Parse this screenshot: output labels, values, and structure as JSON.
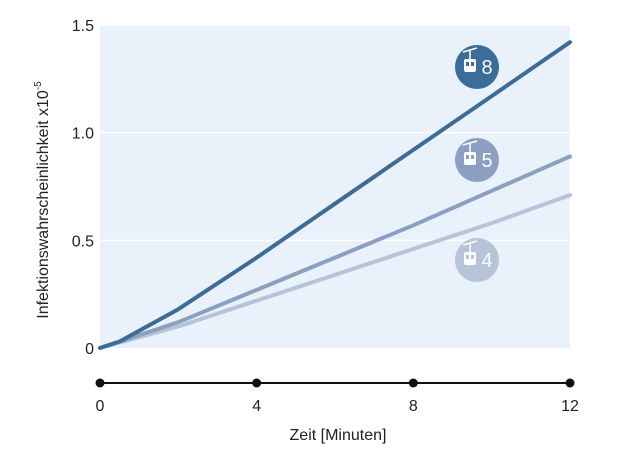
{
  "chart_data": {
    "type": "line",
    "xlabel": "Zeit [Minuten]",
    "ylabel_main": "Infektionswahrscheinlichkeit x10",
    "ylabel_exp": "-5",
    "x_ticks": [
      "0",
      "4",
      "8",
      "12"
    ],
    "y_ticks": [
      "0",
      "0.5",
      "1.0",
      "1.5"
    ],
    "xlim": [
      0,
      12
    ],
    "ylim": [
      0,
      1.5
    ],
    "grid": true,
    "series": [
      {
        "name": "8",
        "icon": "cable-car-icon",
        "color": "#3a6d99",
        "x": [
          0,
          0.5,
          1,
          2,
          4,
          6,
          8,
          10,
          12
        ],
        "y": [
          0,
          0.03,
          0.08,
          0.18,
          0.42,
          0.67,
          0.92,
          1.17,
          1.42
        ]
      },
      {
        "name": "5",
        "icon": "cable-car-icon",
        "color": "#8d9fc0",
        "x": [
          0,
          0.5,
          1,
          2,
          4,
          6,
          8,
          10,
          12
        ],
        "y": [
          0,
          0.03,
          0.06,
          0.12,
          0.27,
          0.42,
          0.57,
          0.73,
          0.89
        ]
      },
      {
        "name": "4",
        "icon": "cable-car-icon",
        "color": "#b6c3d9",
        "x": [
          0,
          0.5,
          1,
          2,
          4,
          6,
          8,
          10,
          12
        ],
        "y": [
          0,
          0.025,
          0.05,
          0.1,
          0.22,
          0.34,
          0.46,
          0.58,
          0.71
        ]
      }
    ]
  },
  "colors": {
    "plot_background": "#e9f1fa",
    "gridline": "#ffffff",
    "axis": "#111111",
    "badge_text": "#ffffff"
  }
}
